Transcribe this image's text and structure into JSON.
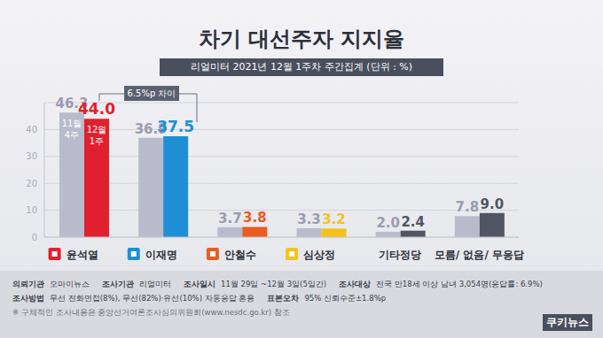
{
  "chart_data": {
    "type": "bar",
    "title": "차기 대선주자 지지율",
    "subtitle": "리얼미터 2021년 12월 1주차 주간집계 (단위 : %)",
    "categories": [
      "윤석열",
      "이재명",
      "안철수",
      "심상정",
      "기타정당",
      "모름/ 없음/ 무응답"
    ],
    "series": [
      {
        "name": "11월 4주",
        "color": "#b9bbcd",
        "values": [
          46.3,
          36.9,
          3.7,
          3.3,
          2.0,
          7.8
        ],
        "value_labels": [
          "46.3",
          "36.9",
          "3.7",
          "3.3",
          "2.0",
          "7.8"
        ]
      },
      {
        "name": "12월 1주",
        "colors": [
          "#e0202e",
          "#1e8fd5",
          "#e85d22",
          "#f4c31a",
          "#515563",
          "#515563"
        ],
        "values": [
          44.0,
          37.5,
          3.8,
          3.2,
          2.4,
          9.0
        ],
        "value_labels": [
          "44.0",
          "37.5",
          "3.8",
          "3.2",
          "2.4",
          "9.0"
        ]
      }
    ],
    "ylim": [
      0,
      50
    ],
    "yticks": [
      0,
      10,
      20,
      30,
      40
    ],
    "grid": true,
    "data_labels": true,
    "annotation": "6.5%p 차이",
    "footer": [
      [
        {
          "label": "의뢰기관",
          "value": "오마이뉴스"
        },
        {
          "label": "조사기관",
          "value": "리얼미터"
        },
        {
          "label": "조사일시",
          "value": "11월 29일 ~12월 3일(5일간)"
        },
        {
          "label": "조사대상",
          "value": "전국 만18세 이상 남녀 3,054명(응답률: 6.9%)"
        }
      ],
      [
        {
          "label": "조사방법",
          "value": "무선 전화면접(8%), 무선(82%)·유선(10%) 자동응답 혼용"
        },
        {
          "label": "표본오차",
          "value": "95% 신뢰수준±1.8%p"
        }
      ]
    ],
    "note": "※ 구체적인 조사내용은 중앙선거여론조사심의위원회(www.nesdc.go.kr) 참조",
    "logo": "쿠키뉴스"
  }
}
